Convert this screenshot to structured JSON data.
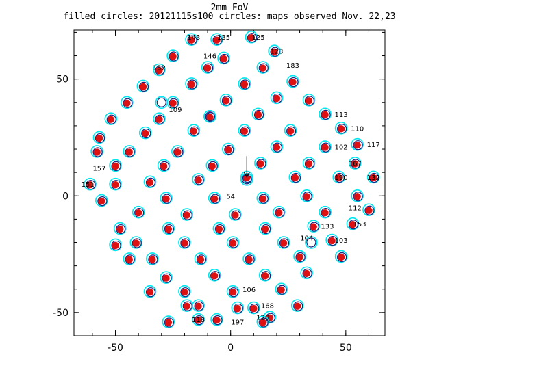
{
  "title": "2mm FoV",
  "subtitle": "filled circles: 20121115s100 circles: maps observed Nov. 22,23",
  "colors": {
    "filled": "#dd1111",
    "circle_cyan": "#00e5ee",
    "circle_blue": "#1a237e",
    "axis": "#000000"
  },
  "chart_data": {
    "type": "scatter",
    "title": "2mm FoV",
    "subtitle": "filled circles: 20121115s100 circles: maps observed Nov. 22,23",
    "xlabel": "",
    "ylabel": "",
    "xlim": [
      -68,
      67
    ],
    "ylim": [
      -60,
      71
    ],
    "xticks": [
      -50,
      0,
      50
    ],
    "yticks": [
      -50,
      0,
      50
    ],
    "grid": false,
    "series": [
      {
        "x": [
          -17,
          -6,
          9,
          -25,
          -3,
          19,
          -31,
          -10,
          14,
          -38,
          -17,
          6,
          27,
          -45,
          -25,
          -2,
          20,
          34,
          -52,
          -31,
          -9,
          12,
          41,
          -57,
          -37,
          -16,
          6,
          26,
          48,
          -58,
          -44,
          -23,
          -1,
          20,
          41,
          55,
          -50,
          -29,
          -8,
          13,
          34,
          54,
          -61,
          -35,
          -14,
          7,
          28,
          47,
          62,
          -50,
          -28,
          -7,
          14,
          33,
          55,
          -56,
          -40,
          -19,
          2,
          21,
          41,
          60,
          -48,
          -27,
          -5,
          15,
          36,
          53,
          -41,
          -20,
          1,
          23,
          44,
          -34,
          -13,
          8,
          30,
          48,
          -50,
          -28,
          -7,
          15,
          33,
          -44,
          -20,
          1,
          22,
          -35,
          -14,
          10,
          29,
          -27,
          -6,
          17,
          -19,
          3,
          -14,
          14
        ],
        "y": [
          67,
          67,
          68,
          60,
          59,
          62,
          54,
          55,
          55,
          47,
          48,
          48,
          49,
          40,
          40,
          41,
          42,
          41,
          33,
          33,
          34,
          35,
          35,
          25,
          27,
          28,
          28,
          28,
          29,
          19,
          19,
          19,
          20,
          21,
          21,
          22,
          13,
          13,
          13,
          14,
          14,
          14,
          5,
          6,
          7,
          8,
          8,
          8,
          8,
          5,
          -1,
          -1,
          -1,
          0,
          0,
          -2,
          -7,
          -8,
          -8,
          -7,
          -7,
          -6,
          -14,
          -14,
          -14,
          -14,
          -13,
          -12,
          -20,
          -20,
          -20,
          -20,
          -19,
          -27,
          -27,
          -27,
          -26,
          -26,
          -21,
          -35,
          -34,
          -34,
          -33,
          -27,
          -41,
          -41,
          -40,
          -41,
          -47,
          -48,
          -47,
          -54,
          -53,
          -52,
          -47,
          -48,
          -53,
          -54
        ],
        "marker": "filled circle + open circles"
      },
      {
        "x": [
          -30,
          -9,
          7,
          35
        ],
        "y": [
          40,
          34,
          7,
          -20
        ],
        "marker": "open circle only"
      }
    ],
    "labels": [
      {
        "x": -16,
        "y": 68,
        "text": "143"
      },
      {
        "x": -3,
        "y": 68,
        "text": "135"
      },
      {
        "x": 12,
        "y": 68,
        "text": "125"
      },
      {
        "x": -9,
        "y": 60,
        "text": "146"
      },
      {
        "x": 20,
        "y": 62,
        "text": "123"
      },
      {
        "x": -31,
        "y": 55,
        "text": "152"
      },
      {
        "x": 27,
        "y": 56,
        "text": "183"
      },
      {
        "x": -24,
        "y": 37,
        "text": "109"
      },
      {
        "x": 6,
        "y": 19,
        "text": ""
      },
      {
        "x": 48,
        "y": 35,
        "text": "113"
      },
      {
        "x": 55,
        "y": 29,
        "text": "110"
      },
      {
        "x": 48,
        "y": 21,
        "text": "102"
      },
      {
        "x": 62,
        "y": 22,
        "text": "117"
      },
      {
        "x": 54,
        "y": 14,
        "text": "167"
      },
      {
        "x": 48,
        "y": 8,
        "text": "190"
      },
      {
        "x": 62,
        "y": 8,
        "text": "132"
      },
      {
        "x": -57,
        "y": 12,
        "text": "157"
      },
      {
        "x": -62,
        "y": 5,
        "text": "151"
      },
      {
        "x": 0,
        "y": 0,
        "text": "54"
      },
      {
        "x": 54,
        "y": -5,
        "text": "112"
      },
      {
        "x": 33,
        "y": -18,
        "text": "104"
      },
      {
        "x": 42,
        "y": -13,
        "text": "133"
      },
      {
        "x": 48,
        "y": -19,
        "text": "103"
      },
      {
        "x": 56,
        "y": -12,
        "text": "153"
      },
      {
        "x": 8,
        "y": -40,
        "text": "106"
      },
      {
        "x": 16,
        "y": -47,
        "text": "168"
      },
      {
        "x": -14,
        "y": -53,
        "text": "118"
      },
      {
        "x": 3,
        "y": -54,
        "text": "197"
      },
      {
        "x": 14,
        "y": -52,
        "text": "120"
      }
    ],
    "annotations": [
      {
        "type": "arrow",
        "from": [
          7,
          17
        ],
        "to": [
          7,
          8
        ]
      }
    ]
  }
}
